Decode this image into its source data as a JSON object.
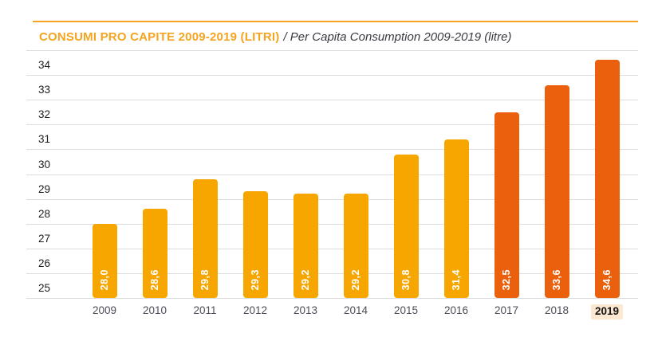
{
  "chart_data": {
    "type": "bar",
    "title": "CONSUMI PRO CAPITE 2009-2019 (LITRI)",
    "subtitle": "/ Per Capita Consumption 2009-2019 (litre)",
    "categories": [
      "2009",
      "2010",
      "2011",
      "2012",
      "2013",
      "2014",
      "2015",
      "2016",
      "2017",
      "2018",
      "2019"
    ],
    "values": [
      28.0,
      28.6,
      29.8,
      29.3,
      29.2,
      29.2,
      30.8,
      31.4,
      32.5,
      33.6,
      34.6
    ],
    "value_labels": [
      "28,0",
      "28,6",
      "29,8",
      "29,3",
      "29,2",
      "29,2",
      "30,8",
      "31,4",
      "32,5",
      "33,6",
      "34,6"
    ],
    "bar_colors": [
      "#F7A600",
      "#F7A600",
      "#F7A600",
      "#F7A600",
      "#F7A600",
      "#F7A600",
      "#F7A600",
      "#F7A600",
      "#EA600C",
      "#EA600C",
      "#EA600C"
    ],
    "ylabel": "",
    "xlabel": "",
    "ylim": [
      25,
      35
    ],
    "yticks": [
      25,
      26,
      27,
      28,
      29,
      30,
      31,
      32,
      33,
      34
    ],
    "grid": true,
    "legend": false,
    "highlighted_category": "2019",
    "decimal_separator": ","
  },
  "colors": {
    "accent_orange": "#F5A41F",
    "bar_orange": "#F7A600",
    "bar_dark_orange": "#EA600C",
    "gridline": "#DDDCDE",
    "y_tick_text": "#1D1D21",
    "x_tick_text": "#4D4D58",
    "subtitle_text": "#3A3A42",
    "highlight_background": "#FCE8D0",
    "bar_value_text": "#FFFFFF"
  }
}
